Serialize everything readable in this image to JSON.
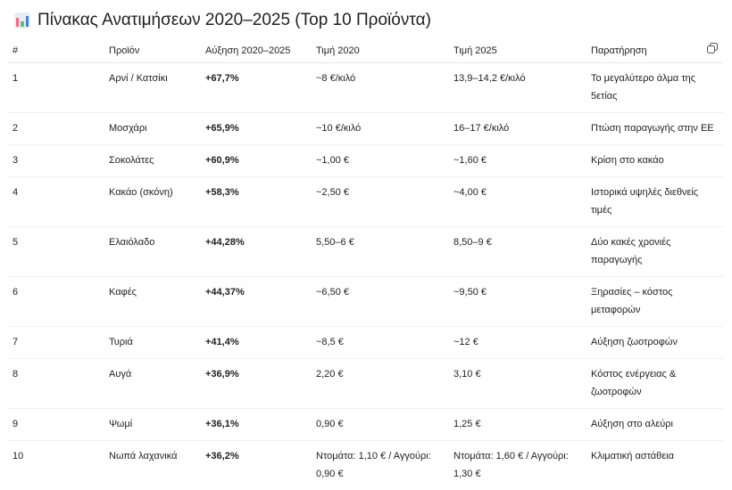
{
  "title": "Πίνακας Ανατιμήσεων 2020–2025 (Top 10 Προϊόντα)",
  "title_icon": "bar-chart-icon",
  "copy_icon": "copy-icon",
  "headers": [
    "#",
    "Προϊόν",
    "Αύξηση 2020–2025",
    "Τιμή 2020",
    "Τιμή 2025",
    "Παρατήρηση"
  ],
  "rows": [
    [
      "1",
      "Αρνί / Κατσίκι",
      "+67,7%",
      "~8 €/κιλό",
      "13,9–14,2 €/κιλό",
      "Το μεγαλύτερο άλμα της 5ετίας"
    ],
    [
      "2",
      "Μοσχάρι",
      "+65,9%",
      "~10 €/κιλό",
      "16–17 €/κιλό",
      "Πτώση παραγωγής στην ΕΕ"
    ],
    [
      "3",
      "Σοκολάτες",
      "+60,9%",
      "~1,00 €",
      "~1,60 €",
      "Κρίση στο κακάο"
    ],
    [
      "4",
      "Κακάο (σκόνη)",
      "+58,3%",
      "~2,50 €",
      "~4,00 €",
      "Ιστορικά υψηλές διεθνείς τιμές"
    ],
    [
      "5",
      "Ελαιόλαδο",
      "+44,28%",
      "5,50–6 €",
      "8,50–9 €",
      "Δύο κακές χρονιές παραγωγής"
    ],
    [
      "6",
      "Καφές",
      "+44,37%",
      "~6,50 €",
      "~9,50 €",
      "Ξηρασίες – κόστος μεταφορών"
    ],
    [
      "7",
      "Τυριά",
      "+41,4%",
      "~8,5 €",
      "~12 €",
      "Αύξηση ζωοτροφών"
    ],
    [
      "8",
      "Αυγά",
      "+36,9%",
      "2,20 €",
      "3,10 €",
      "Κόστος ενέργειας & ζωοτροφών"
    ],
    [
      "9",
      "Ψωμί",
      "+36,1%",
      "0,90 €",
      "1,25 €",
      "Αύξηση στο αλεύρι"
    ],
    [
      "10",
      "Νωπά λαχανικά",
      "+36,2%",
      "Ντομάτα: 1,10 € / Αγγούρι: 0,90 €",
      "Ντομάτα: 1,60 € / Αγγούρι: 1,30 €",
      "Κλιματική αστάθεια"
    ]
  ]
}
